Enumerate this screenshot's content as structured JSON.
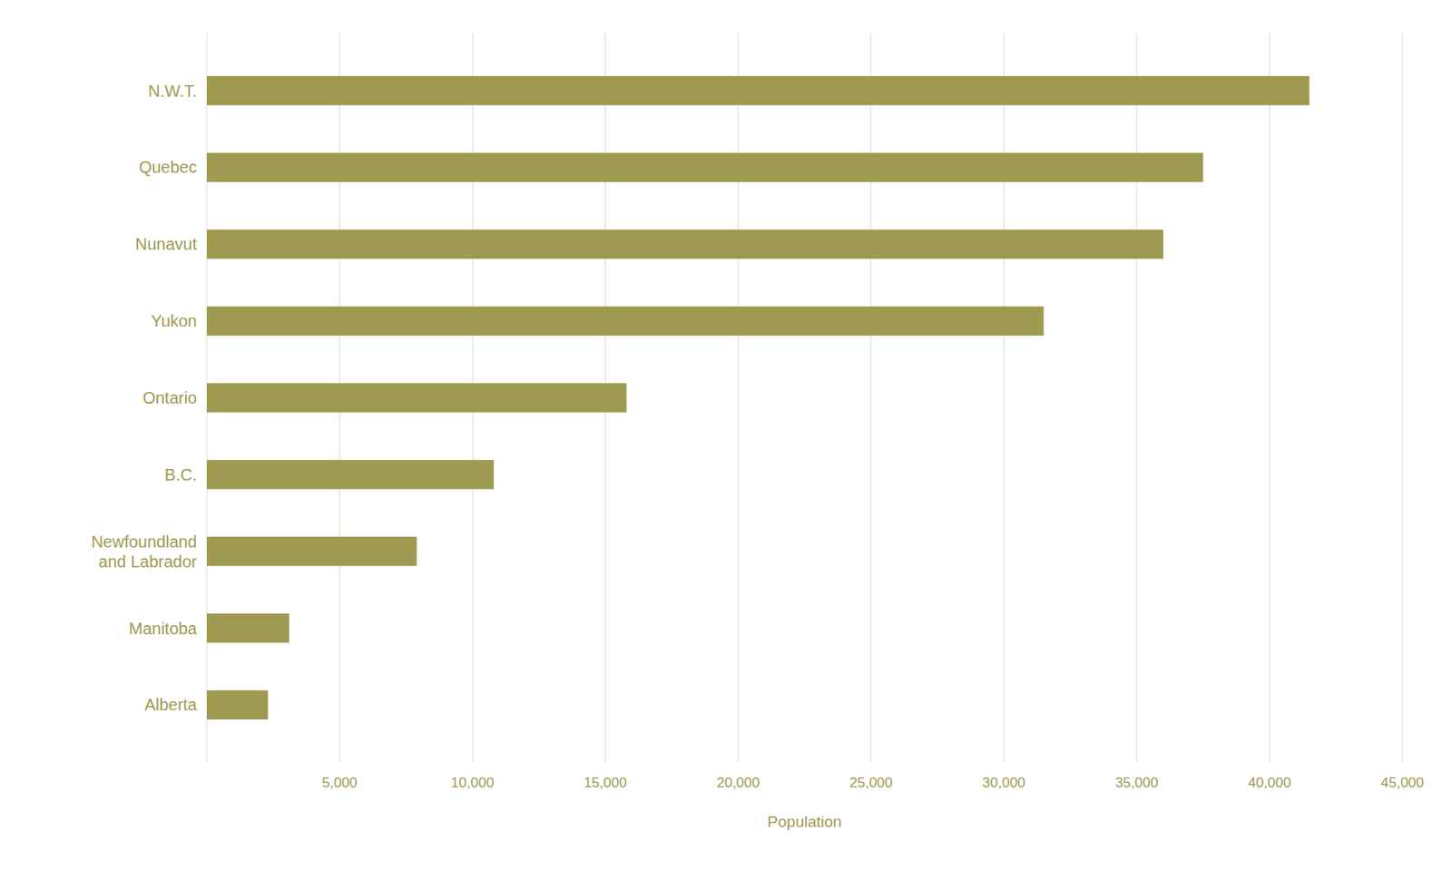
{
  "chart_data": {
    "type": "bar",
    "orientation": "horizontal",
    "categories": [
      "N.W.T.",
      "Quebec",
      "Nunavut",
      "Yukon",
      "Ontario",
      "B.C.",
      "Newfoundland\nand Labrador",
      "Manitoba",
      "Alberta"
    ],
    "values": [
      41500,
      37500,
      36000,
      31500,
      15800,
      10800,
      7900,
      3100,
      2300
    ],
    "color": "#9e9a52",
    "xlabel": "Population",
    "xlim": [
      0,
      45000
    ],
    "xticks": [
      {
        "value": 0,
        "label": null
      },
      {
        "value": 5000,
        "label": "5,000"
      },
      {
        "value": 10000,
        "label": "10,000"
      },
      {
        "value": 15000,
        "label": "15,000"
      },
      {
        "value": 20000,
        "label": "20,000"
      },
      {
        "value": 25000,
        "label": "25,000"
      },
      {
        "value": 30000,
        "label": "30,000"
      },
      {
        "value": 35000,
        "label": "35,000"
      },
      {
        "value": 40000,
        "label": "40,000"
      },
      {
        "value": 45000,
        "label": "45,000"
      }
    ],
    "grid": true
  }
}
